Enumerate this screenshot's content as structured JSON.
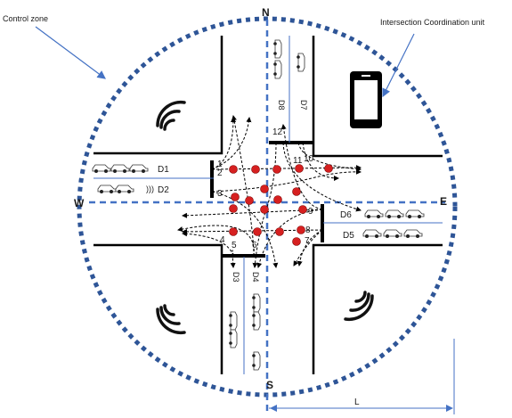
{
  "labels": {
    "control_zone": "Control zone",
    "coordination_unit": "Intersection Coordination unit",
    "north": "N",
    "south": "S",
    "east": "E",
    "west": "W",
    "length": "L"
  },
  "lanes": {
    "d1": "D1",
    "d2": "D2",
    "d3": "D3",
    "d4": "D4",
    "d5": "D5",
    "d6": "D6",
    "d7": "D7",
    "d8": "D8"
  },
  "conflict_points": [
    "1",
    "2",
    "3",
    "4",
    "5",
    "6",
    "7",
    "8",
    "9",
    "10",
    "11",
    "12"
  ],
  "colors": {
    "zone_border": "#2e5597",
    "lane_divider": "#4472c4",
    "conflict_point": "#d62020",
    "road_edge": "#000000"
  },
  "icons": {
    "phone": "smartphone-icon",
    "wireless": "wireless-signal-icon",
    "vehicle": "car-icon"
  }
}
